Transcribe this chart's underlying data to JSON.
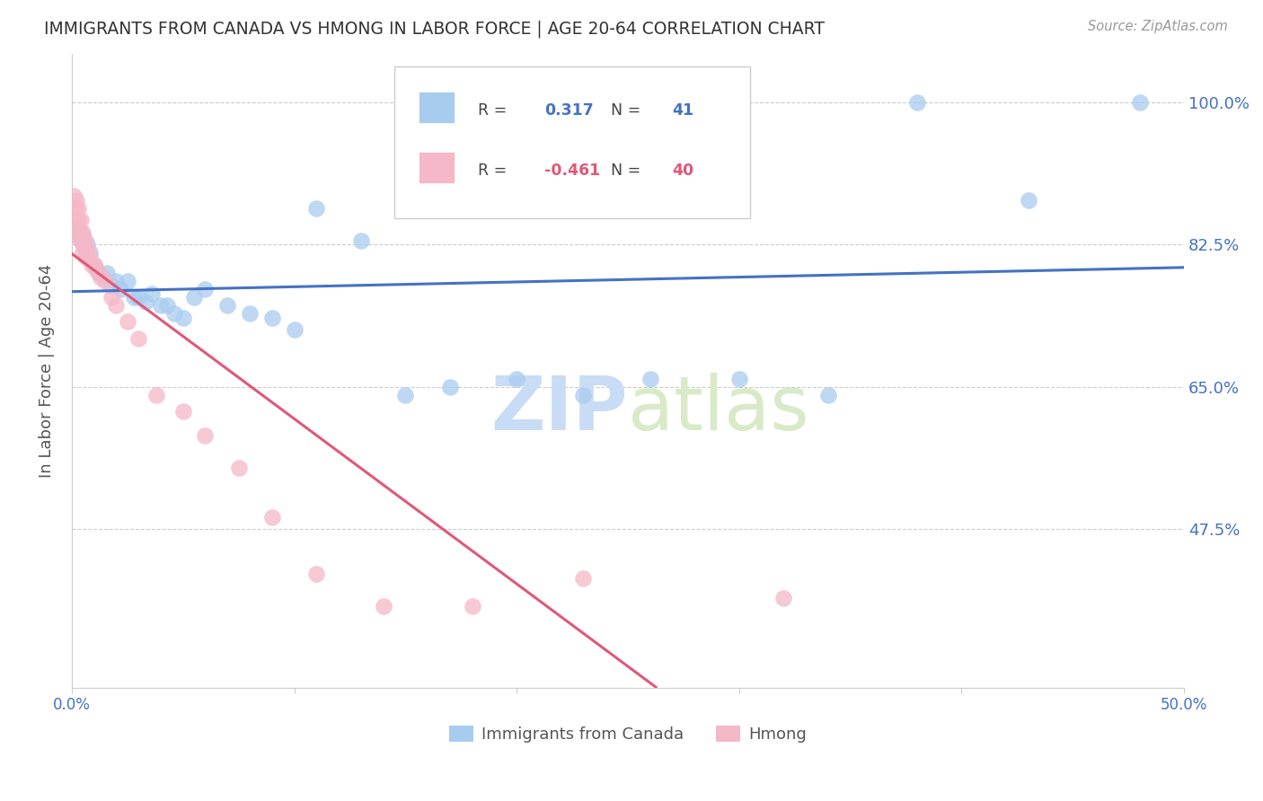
{
  "title": "IMMIGRANTS FROM CANADA VS HMONG IN LABOR FORCE | AGE 20-64 CORRELATION CHART",
  "source": "Source: ZipAtlas.com",
  "ylabel": "In Labor Force | Age 20-64",
  "ytick_labels": [
    "100.0%",
    "82.5%",
    "65.0%",
    "47.5%"
  ],
  "ytick_values": [
    1.0,
    0.825,
    0.65,
    0.475
  ],
  "xtick_labels": [
    "0.0%",
    "",
    "",
    "",
    "",
    "50.0%"
  ],
  "xmin": 0.0,
  "xmax": 0.5,
  "ymin": 0.28,
  "ymax": 1.06,
  "canada_color": "#A8CCF0",
  "hmong_color": "#F5B8C8",
  "canada_line_color": "#4472C4",
  "hmong_line_color": "#E05878",
  "hmong_line_dash_color": "#F4A0B0",
  "watermark_zip": "ZIP",
  "watermark_atlas": "atlas",
  "canada_x": [
    0.002,
    0.003,
    0.004,
    0.005,
    0.006,
    0.007,
    0.008,
    0.01,
    0.012,
    0.014,
    0.016,
    0.018,
    0.02,
    0.022,
    0.025,
    0.028,
    0.03,
    0.033,
    0.036,
    0.04,
    0.043,
    0.046,
    0.05,
    0.055,
    0.06,
    0.07,
    0.08,
    0.09,
    0.1,
    0.11,
    0.13,
    0.15,
    0.17,
    0.2,
    0.23,
    0.26,
    0.3,
    0.34,
    0.38,
    0.43,
    0.48
  ],
  "canada_y": [
    0.845,
    0.84,
    0.83,
    0.835,
    0.82,
    0.825,
    0.815,
    0.8,
    0.79,
    0.785,
    0.79,
    0.775,
    0.78,
    0.77,
    0.78,
    0.76,
    0.76,
    0.755,
    0.765,
    0.75,
    0.75,
    0.74,
    0.735,
    0.76,
    0.77,
    0.75,
    0.74,
    0.735,
    0.72,
    0.87,
    0.83,
    0.64,
    0.65,
    0.66,
    0.64,
    0.66,
    0.66,
    0.64,
    1.0,
    0.88,
    1.0
  ],
  "hmong_x": [
    0.001,
    0.001,
    0.002,
    0.002,
    0.002,
    0.003,
    0.003,
    0.003,
    0.003,
    0.004,
    0.004,
    0.004,
    0.005,
    0.005,
    0.005,
    0.006,
    0.006,
    0.006,
    0.007,
    0.008,
    0.009,
    0.01,
    0.011,
    0.012,
    0.013,
    0.015,
    0.018,
    0.02,
    0.025,
    0.03,
    0.038,
    0.05,
    0.06,
    0.075,
    0.09,
    0.11,
    0.14,
    0.18,
    0.23,
    0.32
  ],
  "hmong_y": [
    0.885,
    0.87,
    0.88,
    0.87,
    0.855,
    0.87,
    0.855,
    0.845,
    0.835,
    0.855,
    0.84,
    0.83,
    0.84,
    0.825,
    0.815,
    0.83,
    0.82,
    0.81,
    0.82,
    0.81,
    0.8,
    0.8,
    0.795,
    0.79,
    0.785,
    0.78,
    0.76,
    0.75,
    0.73,
    0.71,
    0.64,
    0.62,
    0.59,
    0.55,
    0.49,
    0.42,
    0.38,
    0.38,
    0.415,
    0.39
  ],
  "background_color": "#FFFFFF",
  "grid_color": "#CCCCCC",
  "title_color": "#333333",
  "tick_label_color": "#4472C4"
}
